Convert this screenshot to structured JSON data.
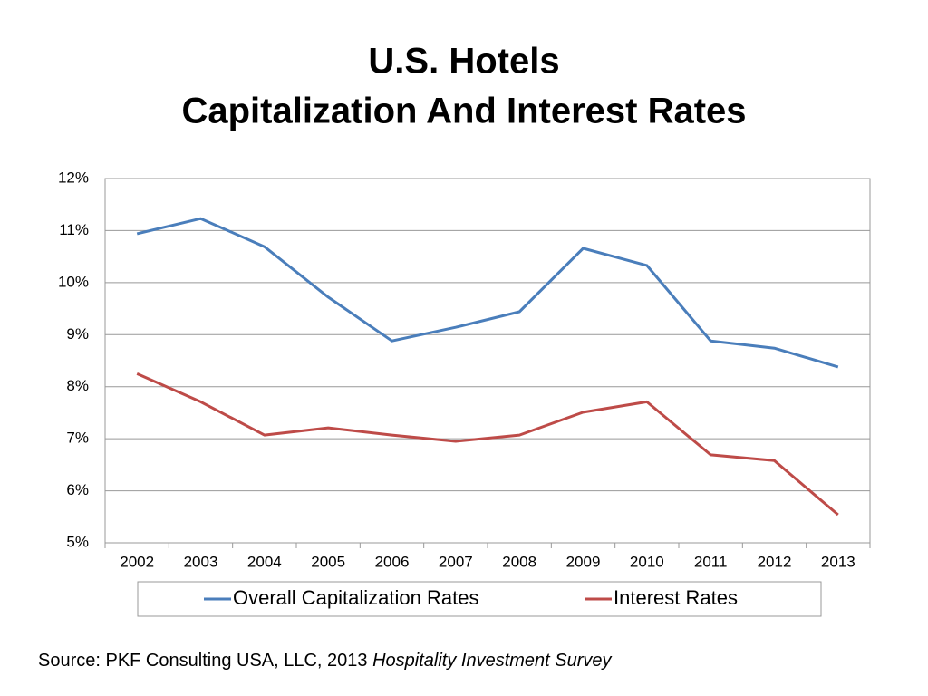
{
  "chart_data": {
    "type": "line",
    "title": [
      "U.S. Hotels",
      "Capitalization And Interest Rates"
    ],
    "source": [
      "Source: PKF Consulting USA, LLC, 2013 ",
      "Hospitality Investment Survey"
    ],
    "categories": [
      "2002",
      "2003",
      "2004",
      "2005",
      "2006",
      "2007",
      "2008",
      "2009",
      "2010",
      "2011",
      "2012",
      "2013"
    ],
    "series": [
      {
        "name": "Overall Capitalization Rates",
        "color": "#4a7ebb",
        "values": [
          10.94,
          11.23,
          10.69,
          9.72,
          8.88,
          9.14,
          9.44,
          10.66,
          10.33,
          8.88,
          8.74,
          8.38
        ]
      },
      {
        "name": "Interest Rates",
        "color": "#be4b48",
        "values": [
          8.25,
          7.71,
          7.07,
          7.21,
          7.07,
          6.95,
          7.07,
          7.51,
          7.71,
          6.69,
          6.58,
          5.54
        ]
      }
    ],
    "ylim": [
      5,
      12
    ],
    "yticks": [
      {
        "value": 5,
        "label": "5%"
      },
      {
        "value": 6,
        "label": "6%"
      },
      {
        "value": 7,
        "label": "7%"
      },
      {
        "value": 8,
        "label": "8%"
      },
      {
        "value": 9,
        "label": "9%"
      },
      {
        "value": 10,
        "label": "10%"
      },
      {
        "value": 11,
        "label": "11%"
      },
      {
        "value": 12,
        "label": "12%"
      }
    ],
    "grid": true,
    "legend": "bottom"
  }
}
